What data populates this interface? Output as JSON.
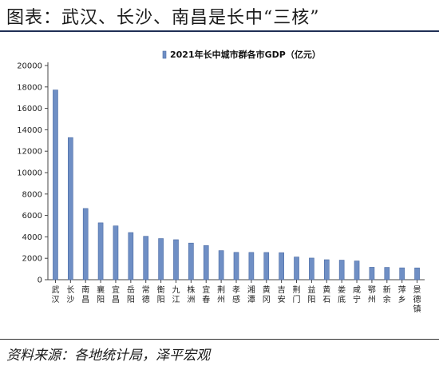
{
  "header": {
    "title": "图表：武汉、长沙、南昌是长中“三核”"
  },
  "footer": {
    "source": "资料来源：各地统计局，泽平宏观"
  },
  "colors": {
    "bar": "#6f8fc5",
    "bar_edge": "#4a6aa3",
    "title_rule": "#1f2f55"
  },
  "chart_data": {
    "type": "bar",
    "title": "",
    "xlabel": "",
    "ylabel": "",
    "ylim": [
      0,
      20000
    ],
    "yticks": [
      0,
      2000,
      4000,
      6000,
      8000,
      10000,
      12000,
      14000,
      16000,
      18000,
      20000
    ],
    "legend_position": "top",
    "grid": false,
    "categories": [
      "武汉",
      "长沙",
      "南昌",
      "襄阳",
      "宜昌",
      "岳阳",
      "常德",
      "衡阳",
      "九江",
      "株洲",
      "宜春",
      "荆州",
      "孝感",
      "湘潭",
      "黄冈",
      "吉安",
      "荆门",
      "益阳",
      "黄石",
      "娄底",
      "咸宁",
      "鄂州",
      "新余",
      "萍乡",
      "景德镇"
    ],
    "series": [
      {
        "name": "2021年长中城市群各市GDP（亿元）",
        "values": [
          17717,
          13271,
          6651,
          5309,
          5023,
          4403,
          4054,
          3841,
          3735,
          3420,
          3191,
          2716,
          2552,
          2548,
          2542,
          2525,
          2120,
          2020,
          1866,
          1826,
          1752,
          1162,
          1152,
          1108,
          1102
        ]
      }
    ]
  }
}
